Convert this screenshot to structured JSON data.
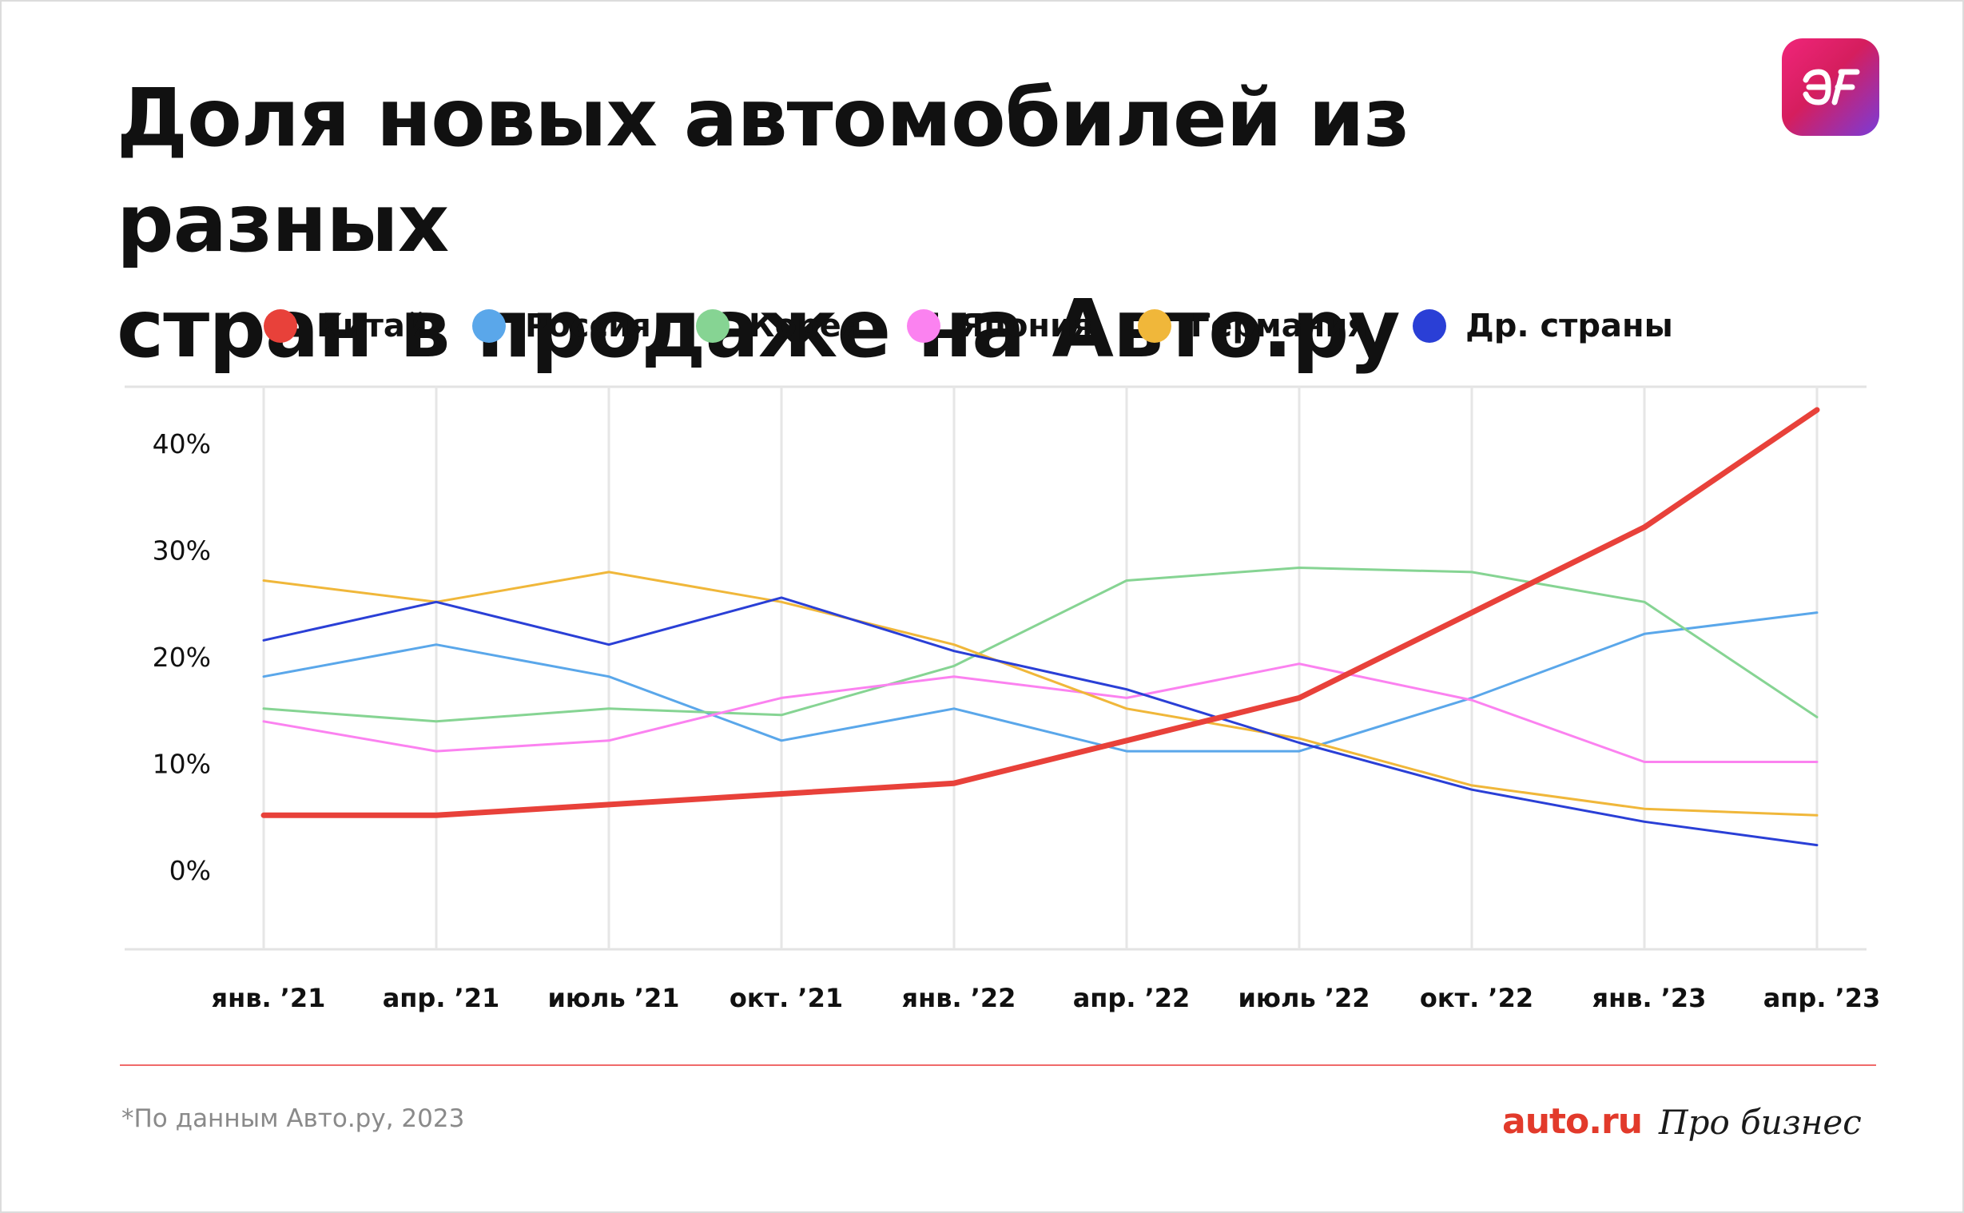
{
  "header": {
    "title_line1": "Доля новых автомобилей из разных",
    "title_line2": "стран в продаже на Авто.ру",
    "logo_icon": "aif-logo-icon"
  },
  "footer": {
    "footnote": "*По данным Авто.ру, 2023",
    "brand_auto": "auto.ru",
    "brand_probiz": "Про бизнес"
  },
  "chart_data": {
    "type": "line",
    "title": "Доля новых автомобилей из разных стран в продаже на Авто.ру",
    "xlabel": "",
    "ylabel": "",
    "categories": [
      "янв. ’21",
      "апр. ’21",
      "июль ’21",
      "окт. ’21",
      "янв. ’22",
      "апр. ’22",
      "июль ’22",
      "окт. ’22",
      "янв. ’23",
      "апр. ’23"
    ],
    "yticks": [
      "0%",
      "10%",
      "20%",
      "30%",
      "40%"
    ],
    "ylim": [
      -7,
      45
    ],
    "grid": "vertical",
    "legend_position": "top",
    "series": [
      {
        "name": "Китай",
        "color": "#e8413a",
        "emphasis": true,
        "values": [
          5,
          5,
          6,
          7,
          8,
          12,
          16,
          24,
          32,
          43
        ]
      },
      {
        "name": "Россия",
        "color": "#5aa7ea",
        "values": [
          18,
          21,
          18,
          12,
          15,
          11,
          11,
          16,
          22,
          24
        ]
      },
      {
        "name": "Корея",
        "color": "#86d493",
        "values": [
          15,
          13.8,
          15,
          14.4,
          19,
          27,
          28.2,
          27.8,
          25,
          14.2
        ]
      },
      {
        "name": "Япония",
        "color": "#fb82f0",
        "values": [
          13.8,
          11,
          12,
          16,
          18,
          16,
          19.2,
          15.8,
          10,
          10
        ]
      },
      {
        "name": "Германия",
        "color": "#f0b73a",
        "values": [
          27,
          25,
          27.8,
          25,
          21,
          15,
          12.2,
          7.8,
          5.6,
          5
        ]
      },
      {
        "name": "Др. страны",
        "color": "#2a3fd6",
        "values": [
          21.4,
          25,
          21,
          25.4,
          20.4,
          16.8,
          11.8,
          7.4,
          4.4,
          2.2
        ]
      }
    ]
  }
}
